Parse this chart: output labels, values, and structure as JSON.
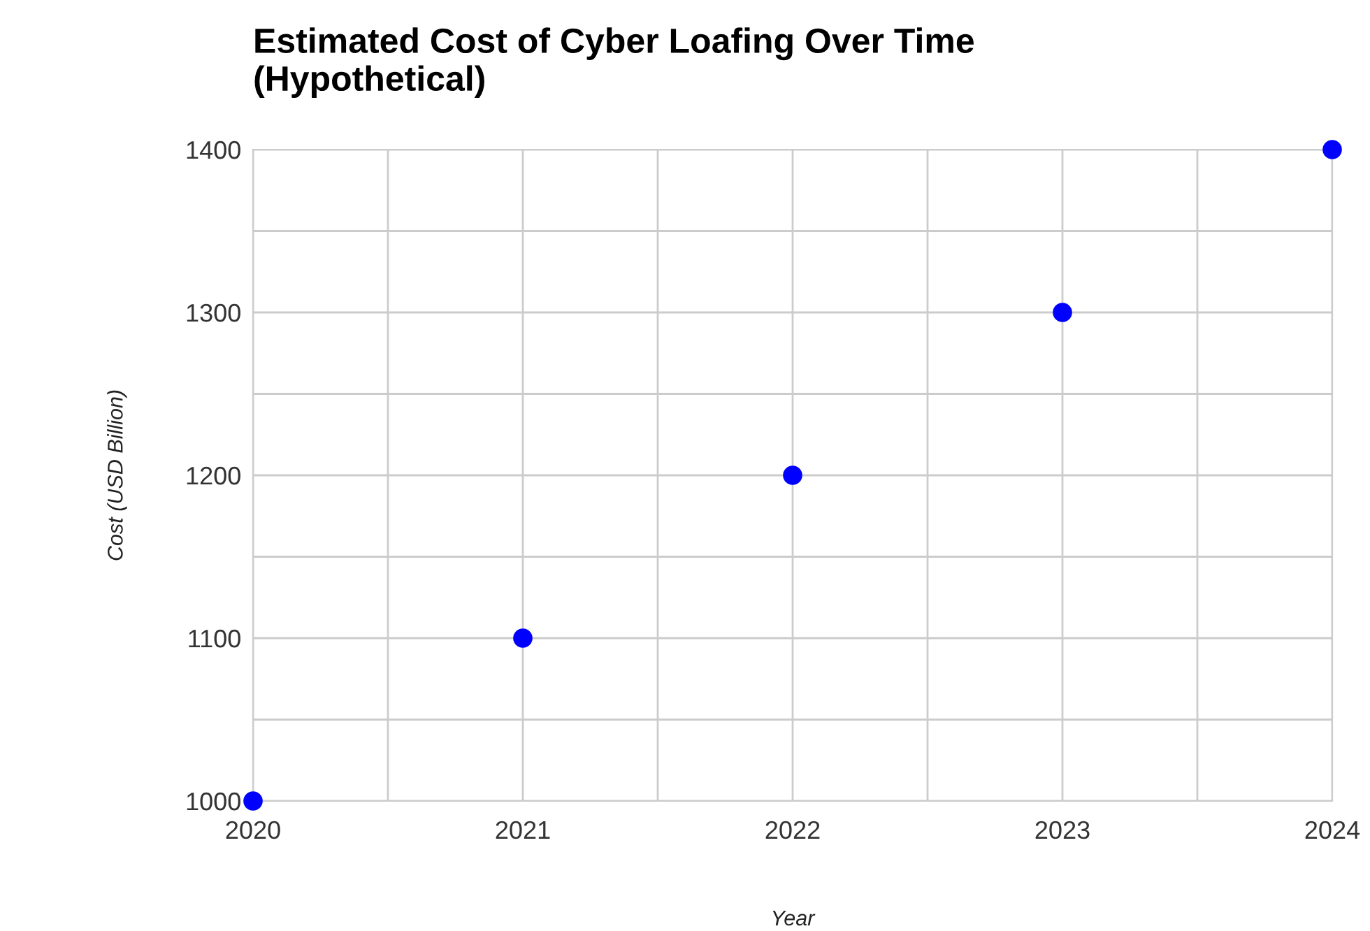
{
  "chart_data": {
    "type": "scatter",
    "title": "Estimated Cost of Cyber Loafing Over Time\n(Hypothetical)",
    "xlabel": "Year",
    "ylabel": "Cost (USD Billion)",
    "x": [
      2020,
      2021,
      2022,
      2023,
      2024
    ],
    "series": [
      {
        "color": "#0000ff",
        "values": [
          1000,
          1100,
          1200,
          1300,
          1400
        ]
      }
    ],
    "marker": "circle",
    "grid": true,
    "xlim": [
      2020,
      2024
    ],
    "xticks": [
      2020,
      {
        "value": 2020.5,
        "label": null
      },
      2021,
      {
        "value": 2021.5,
        "label": null
      },
      2022,
      {
        "value": 2022.5,
        "label": null
      },
      2023,
      {
        "value": 2023.5,
        "label": null
      },
      2024
    ],
    "ylim": [
      1000,
      1400
    ],
    "yticks": [
      1000,
      {
        "value": 1050,
        "label": null
      },
      1100,
      {
        "value": 1150,
        "label": null
      },
      1200,
      {
        "value": 1250,
        "label": null
      },
      1300,
      {
        "value": 1350,
        "label": null
      },
      1400
    ]
  }
}
